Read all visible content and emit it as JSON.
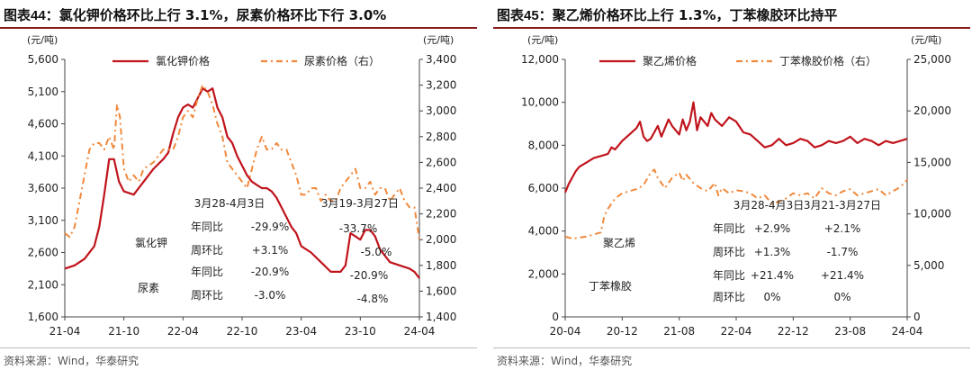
{
  "chart_data": [
    {
      "type": "line",
      "title": "图表44：氯化钾价格环比上行 3.1%，尿素价格环比下行 3.0%",
      "title_prefix": "图表44：",
      "title_text": "氯化钾价格环比上行 3.1%，尿素价格环比下行 3.0%",
      "y_left_unit": "(元/吨)",
      "y_right_unit": "(元/吨)",
      "y_left_ticks": [
        "5,600",
        "5,100",
        "4,600",
        "4,100",
        "3,600",
        "3,100",
        "2,600",
        "2,100",
        "1,600"
      ],
      "y_right_ticks": [
        "3,400",
        "3,200",
        "3,000",
        "2,800",
        "2,600",
        "2,400",
        "2,200",
        "2,000",
        "1,800",
        "1,600",
        "1,400"
      ],
      "ylim_left": [
        1600,
        5600
      ],
      "ylim_right": [
        1400,
        3400
      ],
      "x_ticks": [
        "21-04",
        "21-10",
        "22-04",
        "22-10",
        "23-04",
        "23-10",
        "24-04"
      ],
      "x_tick_t": [
        0,
        6,
        12,
        18,
        24,
        30,
        36
      ],
      "series": [
        {
          "name": "氯化钾价格",
          "axis": "left",
          "color": "#c0141c",
          "style": "solid",
          "t": [
            0,
            1,
            2,
            3,
            3.5,
            4,
            4.5,
            5,
            5.5,
            6,
            7,
            8,
            9,
            10,
            10.5,
            11,
            11.5,
            12,
            12.5,
            13,
            13.5,
            14,
            14.5,
            15,
            15.5,
            16,
            16.5,
            17,
            17.5,
            18,
            18.5,
            19,
            19.5,
            20,
            20.5,
            21,
            21.5,
            22,
            22.5,
            23,
            23.5,
            24,
            25,
            26,
            27,
            28,
            28.5,
            29,
            29.5,
            30,
            30.5,
            31,
            31.5,
            32,
            32.5,
            33,
            34,
            35,
            35.5,
            36
          ],
          "values": [
            2350,
            2400,
            2500,
            2700,
            3000,
            3500,
            4050,
            4050,
            3700,
            3550,
            3500,
            3700,
            3900,
            4050,
            4150,
            4450,
            4700,
            4850,
            4900,
            4850,
            5000,
            5150,
            5100,
            5150,
            4850,
            4700,
            4400,
            4300,
            4100,
            3950,
            3800,
            3700,
            3650,
            3600,
            3600,
            3550,
            3450,
            3300,
            3150,
            3000,
            2900,
            2700,
            2600,
            2450,
            2300,
            2300,
            2400,
            2900,
            2850,
            2800,
            2950,
            2950,
            2850,
            2650,
            2550,
            2450,
            2400,
            2350,
            2300,
            2200
          ]
        },
        {
          "name": "尿素价格（右）",
          "axis": "right",
          "color": "#f0893c",
          "style": "dashdot",
          "t": [
            0,
            0.5,
            1,
            1.5,
            2,
            2.5,
            3,
            3.5,
            4,
            4.5,
            5,
            5.3,
            5.6,
            6,
            6.5,
            7,
            7.5,
            8,
            9,
            10,
            11,
            11.5,
            12,
            12.5,
            13,
            13.5,
            14,
            14.5,
            15,
            15.5,
            16,
            16.5,
            17,
            17.5,
            18,
            18.5,
            19,
            19.5,
            20,
            20.5,
            21,
            21.5,
            22,
            22.5,
            23,
            23.5,
            24,
            24.5,
            25,
            25.5,
            26,
            26.5,
            27,
            27.5,
            28,
            28.5,
            29,
            29.5,
            30,
            30.5,
            31,
            31.5,
            32,
            32.5,
            33,
            33.5,
            34,
            34.5,
            35,
            35.5,
            36
          ],
          "values": [
            2050,
            2020,
            2100,
            2300,
            2500,
            2700,
            2750,
            2750,
            2700,
            2800,
            2700,
            3050,
            2950,
            2550,
            2450,
            2500,
            2450,
            2550,
            2600,
            2700,
            2700,
            2800,
            2950,
            3000,
            2950,
            3100,
            3200,
            3150,
            3050,
            2900,
            2800,
            2600,
            2550,
            2500,
            2450,
            2400,
            2550,
            2700,
            2800,
            2700,
            2700,
            2750,
            2700,
            2700,
            2600,
            2500,
            2350,
            2350,
            2400,
            2400,
            2300,
            2350,
            2300,
            2300,
            2400,
            2450,
            2500,
            2550,
            2400,
            2400,
            2450,
            2350,
            2400,
            2400,
            2300,
            2350,
            2400,
            2300,
            2250,
            2250,
            2000
          ]
        }
      ],
      "legend": [
        "氯化钾价格",
        "尿素价格（右）"
      ],
      "annotations": [
        {
          "text": "3月28-4月3日"
        },
        {
          "text": "3月19-3月27日"
        },
        {
          "text": "年同比"
        },
        {
          "text": "-29.9%"
        },
        {
          "text": "-33.7%"
        },
        {
          "text": "氯化钾"
        },
        {
          "text": "周环比"
        },
        {
          "text": "+3.1%"
        },
        {
          "text": "-5.0%"
        },
        {
          "text": "年同比"
        },
        {
          "text": "-20.9%"
        },
        {
          "text": "-20.9%"
        },
        {
          "text": "尿素"
        },
        {
          "text": "周环比"
        },
        {
          "text": "-3.0%"
        },
        {
          "text": "-4.8%"
        }
      ],
      "source": "资料来源：Wind，华泰研究"
    },
    {
      "type": "line",
      "title": "图表45：聚乙烯价格环比上行 1.3%，丁苯橡胶环比持平",
      "title_prefix": "图表45：",
      "title_text": "聚乙烯价格环比上行 1.3%，丁苯橡胶环比持平",
      "y_left_unit": "(元/吨)",
      "y_right_unit": "(元/吨)",
      "y_left_ticks": [
        "12,000",
        "10,000",
        "8,000",
        "6,000",
        "4,000",
        "2,000",
        "0"
      ],
      "y_right_ticks": [
        "25,000",
        "20,000",
        "15,000",
        "10,000",
        "5,000",
        "0"
      ],
      "ylim_left": [
        0,
        12000
      ],
      "ylim_right": [
        0,
        25000
      ],
      "x_ticks": [
        "20-04",
        "20-12",
        "21-08",
        "22-04",
        "22-12",
        "23-08",
        "24-04"
      ],
      "x_tick_t": [
        0,
        8,
        16,
        24,
        32,
        40,
        48
      ],
      "series": [
        {
          "name": "聚乙烯价格",
          "axis": "left",
          "color": "#c0141c",
          "style": "solid",
          "t": [
            0,
            0.5,
            1,
            1.5,
            2,
            3,
            4,
            5,
            6,
            6.5,
            7,
            7.5,
            8,
            9,
            10,
            10.5,
            11,
            11.5,
            12,
            13,
            13.5,
            14,
            14.5,
            15,
            16,
            16.5,
            17,
            17.5,
            18,
            18.5,
            19,
            20,
            20.5,
            21,
            22,
            23,
            24,
            25,
            26,
            27,
            28,
            29,
            30,
            31,
            32,
            33,
            34,
            35,
            36,
            37,
            38,
            39,
            40,
            41,
            42,
            43,
            44,
            45,
            46,
            47,
            48
          ],
          "values": [
            5800,
            6200,
            6500,
            6800,
            7000,
            7200,
            7400,
            7500,
            7600,
            7900,
            7800,
            8000,
            8200,
            8500,
            8800,
            9100,
            8400,
            8200,
            8300,
            8900,
            8400,
            8800,
            9200,
            8900,
            8500,
            9200,
            8700,
            9100,
            10000,
            8700,
            9300,
            8900,
            9500,
            9200,
            8900,
            9300,
            9100,
            8600,
            8500,
            8200,
            7900,
            8000,
            8300,
            8000,
            8100,
            8300,
            8200,
            7900,
            8000,
            8200,
            8100,
            8200,
            8400,
            8100,
            8300,
            8200,
            8000,
            8200,
            8100,
            8200,
            8300
          ]
        },
        {
          "name": "丁苯橡胶价格（右）",
          "axis": "right",
          "color": "#f0893c",
          "style": "dashdot",
          "t": [
            0,
            1,
            2,
            3,
            4,
            5,
            5.5,
            6,
            6.5,
            7,
            8,
            9,
            10,
            11,
            12,
            12.5,
            13,
            14,
            15,
            16,
            16.5,
            17,
            18,
            19,
            20,
            21,
            21.5,
            22,
            23,
            24,
            25,
            26,
            27,
            28,
            29,
            30,
            31,
            32,
            33,
            34,
            35,
            36,
            37,
            38,
            39,
            40,
            41,
            42,
            43,
            44,
            45,
            46,
            47,
            48
          ],
          "values": [
            7800,
            7600,
            7700,
            7800,
            8000,
            8200,
            9800,
            10500,
            11000,
            11500,
            12000,
            12200,
            12400,
            12800,
            14000,
            14300,
            13500,
            12500,
            13500,
            14000,
            13200,
            13800,
            13000,
            12500,
            12200,
            13000,
            11800,
            12500,
            12000,
            12300,
            12200,
            12000,
            11500,
            11800,
            11000,
            11200,
            11500,
            12000,
            11800,
            12000,
            11500,
            12500,
            12000,
            11800,
            12200,
            12400,
            11800,
            12000,
            12200,
            12400,
            11800,
            12200,
            12600,
            13300
          ]
        }
      ],
      "legend": [
        "聚乙烯价格",
        "丁苯橡胶价格（右）"
      ],
      "annotations": [
        {
          "text": "3月28-4月3日"
        },
        {
          "text": "3月21-3月27日"
        },
        {
          "text": "聚乙烯"
        },
        {
          "text": "年同比"
        },
        {
          "text": "+2.9%"
        },
        {
          "text": "+2.1%"
        },
        {
          "text": "周环比"
        },
        {
          "text": "+1.3%"
        },
        {
          "text": "-1.7%"
        },
        {
          "text": "丁苯橡胶"
        },
        {
          "text": "年同比"
        },
        {
          "text": "+21.4%"
        },
        {
          "text": "+21.4%"
        },
        {
          "text": "周环比"
        },
        {
          "text": "0%"
        },
        {
          "text": "0%"
        }
      ],
      "source": "资料来源：Wind，华泰研究"
    }
  ]
}
